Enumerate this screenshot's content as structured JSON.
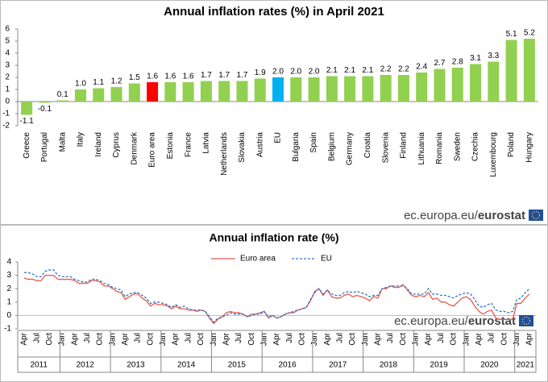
{
  "chart_data": [
    {
      "type": "bar",
      "title": "Annual inflation rates (%) in April 2021",
      "source_site": "ec.europa.eu/",
      "source_brand": "eurostat",
      "categories": [
        "Greece",
        "Portugal",
        "Malta",
        "Italy",
        "Ireland",
        "Cyprus",
        "Denmark",
        "Euro area",
        "Estonia",
        "France",
        "Latvia",
        "Netherlands",
        "Slovakia",
        "Austria",
        "EU",
        "Bulgaria",
        "Spain",
        "Belgium",
        "Germany",
        "Croatia",
        "Slovenia",
        "Finland",
        "Lithuania",
        "Romania",
        "Sweden",
        "Czechia",
        "Luxembourg",
        "Poland",
        "Hungary"
      ],
      "values": [
        -1.1,
        -0.1,
        0.1,
        1.0,
        1.1,
        1.2,
        1.5,
        1.6,
        1.6,
        1.6,
        1.7,
        1.7,
        1.7,
        1.9,
        2.0,
        2.0,
        2.0,
        2.1,
        2.1,
        2.1,
        2.2,
        2.2,
        2.4,
        2.7,
        2.8,
        3.1,
        3.3,
        5.1,
        5.2
      ],
      "value_labels": [
        "-1.1",
        "-0.1",
        "0.1",
        "1.0",
        "1.1",
        "1.2",
        "1.5",
        "1.6",
        "1.6",
        "1.6",
        "1.7",
        "1.7",
        "1.7",
        "1.9",
        "2.0",
        "2.0",
        "2.0",
        "2.1",
        "2.1",
        "2.1",
        "2.2",
        "2.2",
        "2.4",
        "2.7",
        "2.8",
        "3.1",
        "3.3",
        "5.1",
        "5.2"
      ],
      "colors": [
        "#92d050",
        "#92d050",
        "#92d050",
        "#92d050",
        "#92d050",
        "#92d050",
        "#92d050",
        "#ff0000",
        "#92d050",
        "#92d050",
        "#92d050",
        "#92d050",
        "#92d050",
        "#92d050",
        "#00b0f0",
        "#92d050",
        "#92d050",
        "#92d050",
        "#92d050",
        "#92d050",
        "#92d050",
        "#92d050",
        "#92d050",
        "#92d050",
        "#92d050",
        "#92d050",
        "#92d050",
        "#92d050",
        "#92d050"
      ],
      "ylim": [
        -2,
        6
      ],
      "yticks": [
        -2,
        -1,
        0,
        1,
        2,
        3,
        4,
        5,
        6
      ],
      "grid": false
    },
    {
      "type": "line",
      "title": "Annual  inflation rate (%)",
      "source_site": "ec.europa.eu/",
      "source_brand": "eurostat",
      "categories": [
        "Apr",
        null,
        null,
        "Jul",
        null,
        null,
        "Oct",
        null,
        null,
        "Jan",
        null,
        null,
        "Apr",
        null,
        null,
        "Jul",
        null,
        null,
        "Oct",
        null,
        null,
        "Jan",
        null,
        null,
        "Apr",
        null,
        null,
        "Jul",
        null,
        null,
        "Oct",
        null,
        null,
        "Jan",
        null,
        null,
        "Apr",
        null,
        null,
        "Jul",
        null,
        null,
        "Oct",
        null,
        null,
        "Jan",
        null,
        null,
        "Apr",
        null,
        null,
        "Jul",
        null,
        null,
        "Oct",
        null,
        null,
        "Jan",
        null,
        null,
        "Apr",
        null,
        null,
        "Jul",
        null,
        null,
        "Oct",
        null,
        null,
        "Jan",
        null,
        null,
        "Apr",
        null,
        null,
        "Jul",
        null,
        null,
        "Oct",
        null,
        null,
        "Jan",
        null,
        null,
        "Apr",
        null,
        null,
        "Jul",
        null,
        null,
        "Oct",
        null,
        null,
        "Jan",
        null,
        null,
        "Apr",
        null,
        null,
        "Jul",
        null,
        null,
        "Oct",
        null,
        null,
        "Jan",
        null,
        null,
        "Apr",
        null,
        null,
        "Jul",
        null,
        null,
        "Oct",
        null,
        null,
        "Jan",
        null,
        null,
        "Apr"
      ],
      "years": [
        2011,
        2012,
        2013,
        2014,
        2015,
        2016,
        2017,
        2018,
        2019,
        2020,
        2021
      ],
      "series": [
        {
          "name": "Euro area",
          "color": "#e8594f",
          "line_style": "solid",
          "values": [
            2.8,
            2.7,
            2.7,
            2.6,
            2.6,
            3.0,
            3.0,
            3.0,
            2.7,
            2.7,
            2.7,
            2.7,
            2.6,
            2.4,
            2.4,
            2.4,
            2.6,
            2.6,
            2.5,
            2.2,
            2.2,
            2.0,
            1.8,
            1.7,
            1.2,
            1.4,
            1.6,
            1.6,
            1.3,
            1.1,
            0.7,
            0.9,
            0.8,
            0.8,
            0.7,
            0.5,
            0.7,
            0.5,
            0.5,
            0.4,
            0.4,
            0.3,
            0.4,
            0.3,
            -0.2,
            -0.6,
            -0.3,
            -0.1,
            0.2,
            0.3,
            0.2,
            0.2,
            0.1,
            -0.1,
            0.1,
            0.1,
            0.2,
            0.3,
            -0.2,
            0.0,
            -0.2,
            -0.1,
            0.1,
            0.2,
            0.2,
            0.4,
            0.5,
            0.6,
            1.1,
            1.8,
            2.0,
            1.5,
            1.9,
            1.4,
            1.3,
            1.3,
            1.5,
            1.6,
            1.4,
            1.5,
            1.4,
            1.3,
            1.1,
            1.4,
            1.3,
            2.0,
            2.0,
            2.2,
            2.1,
            2.1,
            2.3,
            1.9,
            1.5,
            1.4,
            1.5,
            1.4,
            1.7,
            1.2,
            1.3,
            1.0,
            1.0,
            0.8,
            0.7,
            1.0,
            1.3,
            1.4,
            1.2,
            0.7,
            0.3,
            0.1,
            0.3,
            0.4,
            -0.2,
            -0.3,
            -0.3,
            -0.3,
            -0.3,
            0.9,
            0.9,
            1.3,
            1.6
          ]
        },
        {
          "name": "EU",
          "color": "#2e75c6",
          "line_style": "dashed",
          "values": [
            3.2,
            3.2,
            3.1,
            2.9,
            2.9,
            3.3,
            3.4,
            3.4,
            3.0,
            2.9,
            2.9,
            2.9,
            2.7,
            2.6,
            2.5,
            2.5,
            2.7,
            2.7,
            2.6,
            2.4,
            2.3,
            2.1,
            2.0,
            1.9,
            1.4,
            1.6,
            1.7,
            1.7,
            1.5,
            1.3,
            0.9,
            1.0,
            1.0,
            0.9,
            0.8,
            0.6,
            0.8,
            0.6,
            0.7,
            0.5,
            0.4,
            0.4,
            0.4,
            0.3,
            -0.1,
            -0.5,
            -0.2,
            -0.1,
            0.0,
            0.2,
            0.1,
            0.1,
            0.1,
            -0.1,
            0.0,
            0.1,
            0.1,
            0.3,
            -0.1,
            0.0,
            -0.2,
            -0.1,
            0.1,
            0.2,
            0.3,
            0.4,
            0.5,
            0.6,
            1.2,
            1.7,
            2.0,
            1.6,
            1.9,
            1.6,
            1.5,
            1.5,
            1.7,
            1.8,
            1.7,
            1.8,
            1.7,
            1.6,
            1.4,
            1.5,
            1.5,
            2.0,
            2.1,
            2.2,
            2.2,
            2.2,
            2.2,
            2.0,
            1.6,
            1.6,
            1.6,
            1.6,
            2.0,
            1.6,
            1.6,
            1.5,
            1.5,
            1.4,
            1.3,
            1.5,
            1.6,
            1.7,
            1.6,
            1.2,
            0.7,
            0.6,
            0.8,
            0.9,
            0.4,
            0.3,
            0.3,
            0.2,
            0.3,
            1.2,
            1.3,
            1.7,
            2.0
          ]
        }
      ],
      "ylim": [
        -1,
        4
      ],
      "yticks": [
        -1,
        0,
        1,
        2,
        3,
        4
      ],
      "grid": false
    }
  ]
}
